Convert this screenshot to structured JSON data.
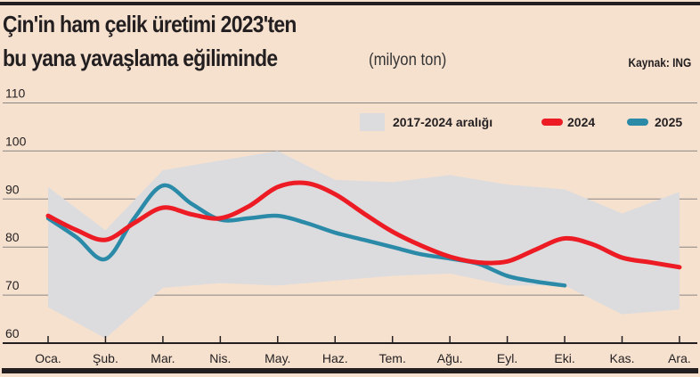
{
  "title_line1": "Çin'in ham çelik üretimi 2023'ten",
  "title_line2": "bu yana yavaşlama eğiliminde",
  "unit": "(milyon ton)",
  "source": "Kaynak: ING",
  "chart_data": {
    "type": "line",
    "title": "Çin'in ham çelik üretimi 2023'ten bu yana yavaşlama eğiliminde",
    "ylabel": "milyon ton",
    "ylim": [
      60,
      110
    ],
    "yticks": [
      60,
      70,
      80,
      90,
      100,
      110
    ],
    "grid": true,
    "legend_position": "top-right",
    "categories": [
      "Oca.",
      "Şub.",
      "Mar.",
      "Nis.",
      "May.",
      "Haz.",
      "Tem.",
      "Ağu.",
      "Eyl.",
      "Eki.",
      "Kas.",
      "Ara."
    ],
    "range": {
      "name": "2017-2024 aralığı",
      "color": "#dcdcde",
      "upper": [
        92.5,
        83.5,
        96,
        98,
        100,
        94,
        93.5,
        95,
        93,
        92,
        87,
        91.5
      ],
      "lower": [
        67.5,
        61,
        71.5,
        72.5,
        72,
        73,
        74,
        74.5,
        72,
        72,
        66,
        67
      ]
    },
    "series": [
      {
        "name": "2024",
        "color": "#ed1c24",
        "x": [
          0,
          0.5,
          1,
          1.5,
          2,
          2.5,
          3,
          3.5,
          4,
          4.5,
          5,
          5.5,
          6,
          6.5,
          7,
          7.5,
          8,
          8.5,
          9,
          9.5,
          10,
          10.5,
          11
        ],
        "values": [
          86.5,
          83.5,
          81.5,
          85,
          88.2,
          86.8,
          86,
          88.5,
          92.5,
          93.3,
          91,
          87,
          83.2,
          80.3,
          78,
          76.8,
          77,
          79.5,
          81.8,
          80.5,
          77.8,
          76.8,
          75.8
        ]
      },
      {
        "name": "2025",
        "color": "#2a8aa8",
        "x": [
          0,
          0.5,
          1,
          1.5,
          2,
          2.5,
          3,
          3.5,
          4,
          4.5,
          5,
          5.5,
          6,
          6.5,
          7,
          7.5,
          8,
          8.5,
          9
        ],
        "values": [
          86,
          82,
          77.5,
          86,
          92.8,
          89,
          85.7,
          86,
          86.5,
          85,
          83,
          81.5,
          80,
          78.5,
          77.6,
          76.5,
          74,
          72.8,
          72
        ]
      }
    ]
  }
}
